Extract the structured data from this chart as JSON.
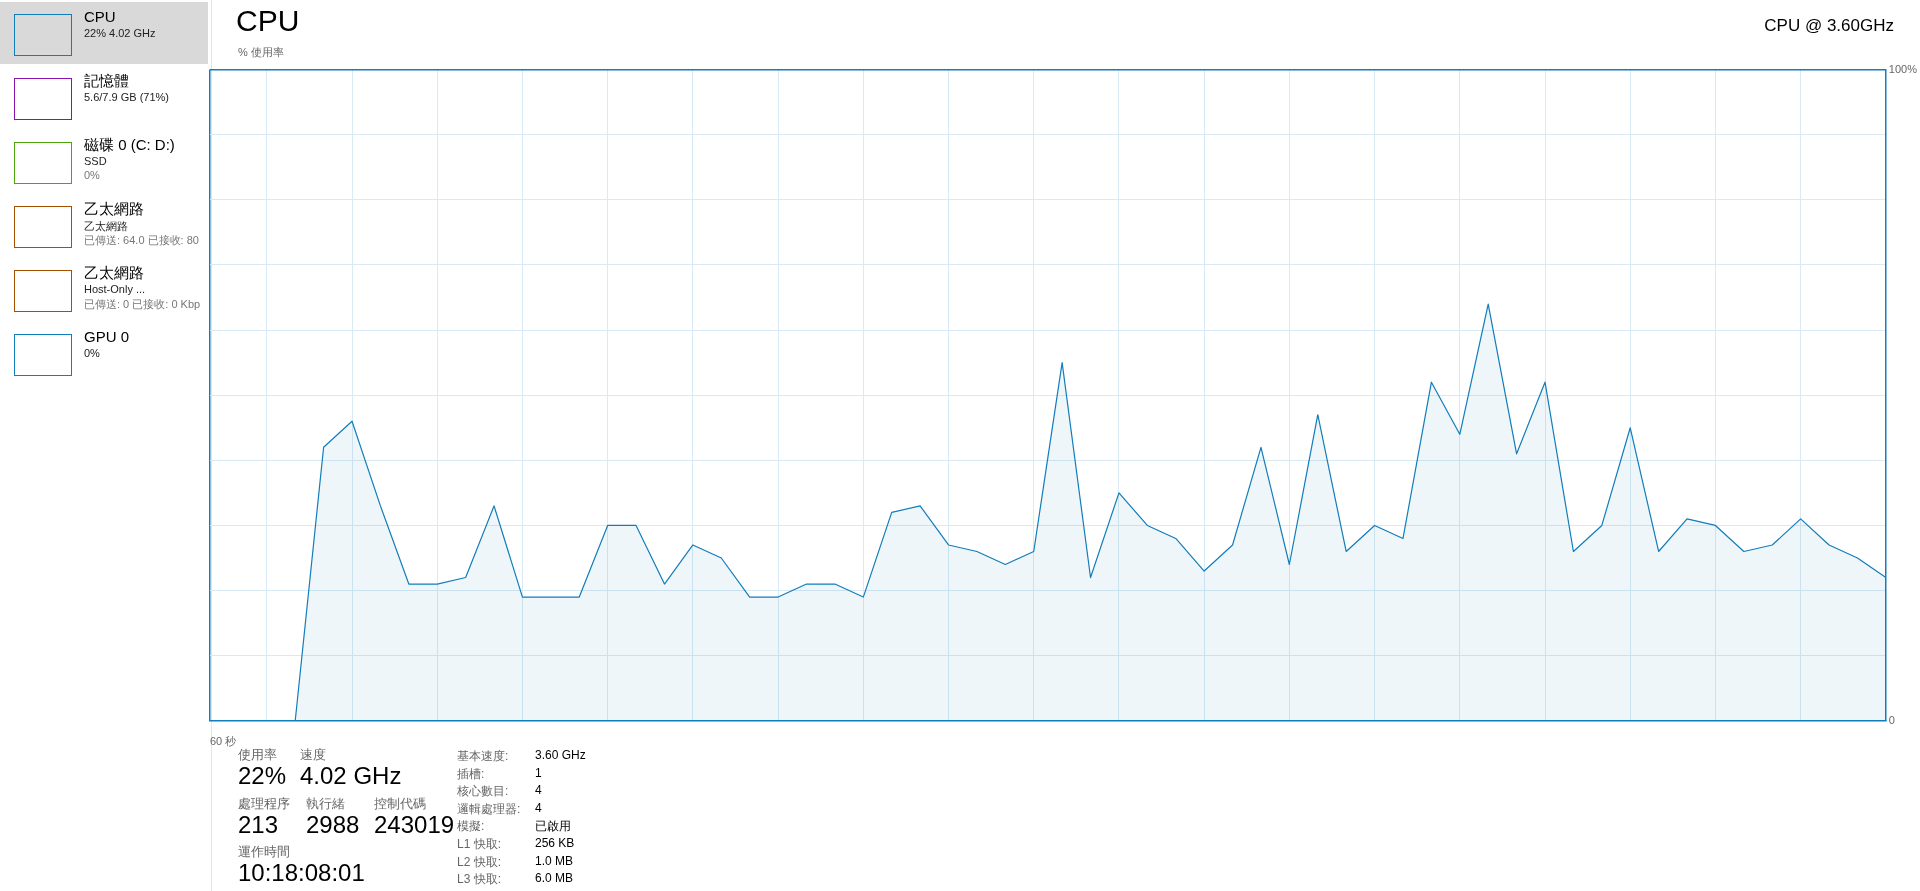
{
  "chart_data": [
    {
      "type": "other",
      "title": "CPU",
      "annotations": [
        "22% 4.02 GHz"
      ]
    },
    {
      "type": "other",
      "title": "記憶體",
      "annotations": [
        "5.6/7.9 GB (71%)"
      ]
    },
    {
      "type": "other",
      "title": "磁碟 0 (C: D:)",
      "annotations": [
        "SSD",
        "0%"
      ]
    },
    {
      "type": "other",
      "title": "乙太網路",
      "annotations": [
        "乙太網路",
        "已傳送: 64.0 已接收: 80"
      ]
    },
    {
      "type": "other",
      "title": "乙太網路",
      "annotations": [
        "Host-Only ...",
        "已傳送: 0 已接收: 0 Kbp"
      ]
    },
    {
      "type": "other",
      "title": "GPU 0",
      "annotations": [
        "0%"
      ]
    },
    {
      "type": "area",
      "title": "CPU",
      "subtitle": "CPU @ 3.60GHz",
      "ylabel": "% 使用率",
      "categories": [
        null,
        null,
        null,
        null,
        null,
        null,
        null,
        null,
        null,
        null,
        null,
        null,
        null,
        null,
        null,
        null,
        null,
        null,
        null,
        null,
        null,
        null,
        null,
        null,
        null,
        null,
        null,
        null,
        null,
        null,
        null,
        null,
        null,
        null,
        null,
        null,
        null,
        null,
        null,
        null,
        null,
        null,
        null,
        null,
        null,
        null,
        null,
        null,
        null,
        null,
        null,
        null,
        null,
        null,
        null,
        null,
        null,
        null,
        null,
        null
      ],
      "annotations": [
        "60 秒"
      ],
      "series": [
        {
          "color": "#117dbb",
          "values": [
            null,
            null,
            null,
            0,
            42,
            46,
            33,
            21,
            21,
            22,
            33,
            19,
            19,
            19,
            30,
            30,
            21,
            27,
            25,
            19,
            19,
            21,
            21,
            19,
            32,
            33,
            27,
            26,
            24,
            26,
            55,
            22,
            35,
            30,
            28,
            23,
            27,
            42,
            24,
            47,
            26,
            30,
            28,
            52,
            44,
            64,
            41,
            52,
            26,
            30,
            45,
            26,
            31,
            30,
            26,
            27,
            31,
            27,
            25,
            22
          ]
        }
      ],
      "ylim": [
        0,
        100
      ],
      "yticks": [
        {
          "value": 0,
          "label": "0"
        },
        {
          "value": 10,
          "label": null
        },
        {
          "value": 20,
          "label": null
        },
        {
          "value": 30,
          "label": null
        },
        {
          "value": 40,
          "label": null
        },
        {
          "value": 50,
          "label": null
        },
        {
          "value": 60,
          "label": null
        },
        {
          "value": 70,
          "label": null
        },
        {
          "value": 80,
          "label": null
        },
        {
          "value": 90,
          "label": null
        },
        {
          "value": 100,
          "label": "100%"
        }
      ],
      "grid": true,
      "marker": "none"
    },
    {
      "type": "other",
      "annotations": [
        "使用率",
        "22%",
        "速度",
        "4.02 GHz",
        "處理程序",
        "213",
        "執行緒",
        "2988",
        "控制代碼",
        "243019",
        "運作時間",
        "10:18:08:01",
        "基本速度:",
        "3.60 GHz",
        "插槽:",
        "1",
        "核心數目:",
        "4",
        "邏輯處理器:",
        "4",
        "模擬:",
        "已啟用",
        "L1 快取:",
        "256 KB",
        "L2 快取:",
        "1.0 MB",
        "L3 快取:",
        "6.0 MB"
      ]
    }
  ]
}
